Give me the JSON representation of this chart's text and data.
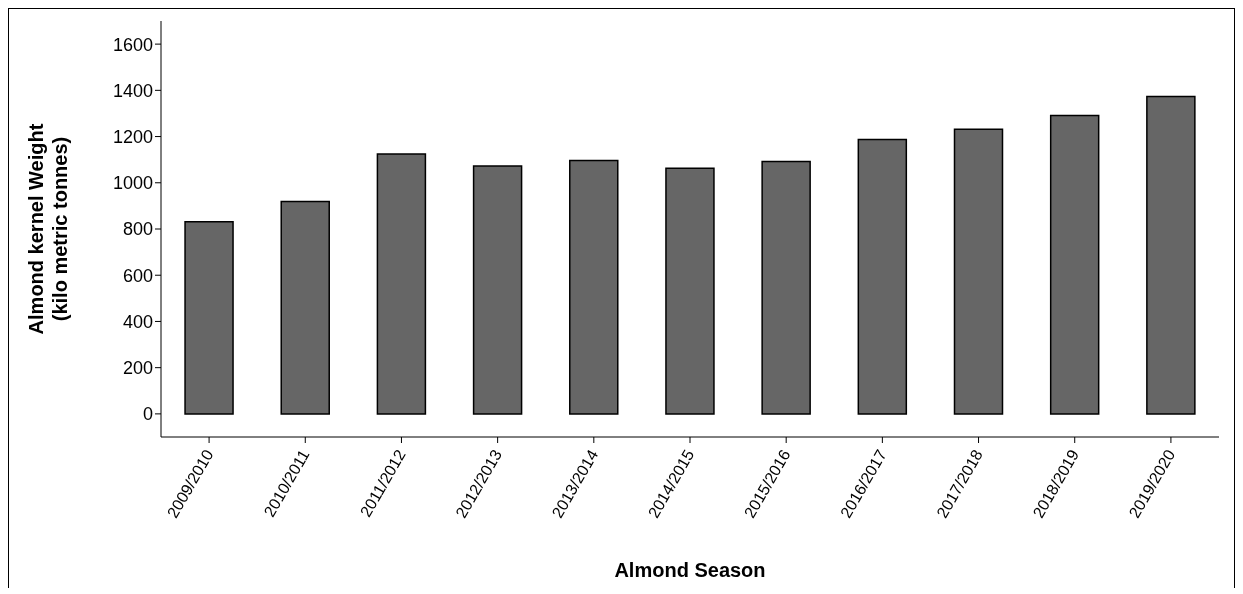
{
  "chart_data": {
    "type": "bar",
    "xlabel": "Almond Season",
    "ylabel": "Almond kernel Weight\n(kilo metric tonnes)",
    "categories": [
      "2009/2010",
      "2010/2011",
      "2011/2012",
      "2012/2013",
      "2013/2014",
      "2014/2015",
      "2015/2016",
      "2016/2017",
      "2017/2018",
      "2018/2019",
      "2019/2020"
    ],
    "values": [
      831,
      919,
      1124,
      1073,
      1096,
      1063,
      1092,
      1187,
      1232,
      1291,
      1373
    ],
    "color": "#666666",
    "ylim": [
      -100,
      1700
    ],
    "yticks": [
      0,
      200,
      400,
      600,
      800,
      1000,
      1200,
      1400,
      1600
    ],
    "grid": false,
    "legend": false
  }
}
